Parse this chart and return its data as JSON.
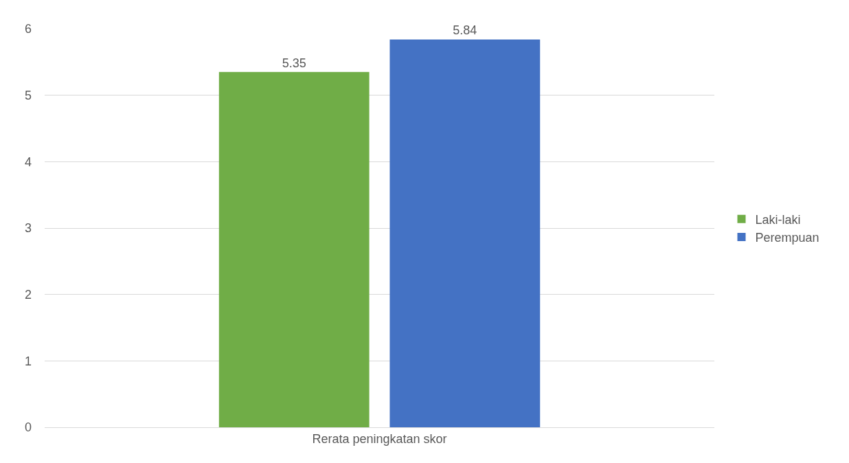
{
  "chart_data": {
    "type": "bar",
    "categories": [
      "Rerata peningkatan skor"
    ],
    "series": [
      {
        "name": "Laki-laki",
        "color": "#70ad47",
        "values": [
          5.35
        ]
      },
      {
        "name": "Perempuan",
        "color": "#4472c4",
        "values": [
          5.84
        ]
      }
    ],
    "ylim": [
      0,
      6
    ],
    "yticks": [
      0,
      1,
      2,
      3,
      4,
      5,
      6
    ],
    "grid": "y",
    "legend": "right",
    "data_labels": true
  }
}
